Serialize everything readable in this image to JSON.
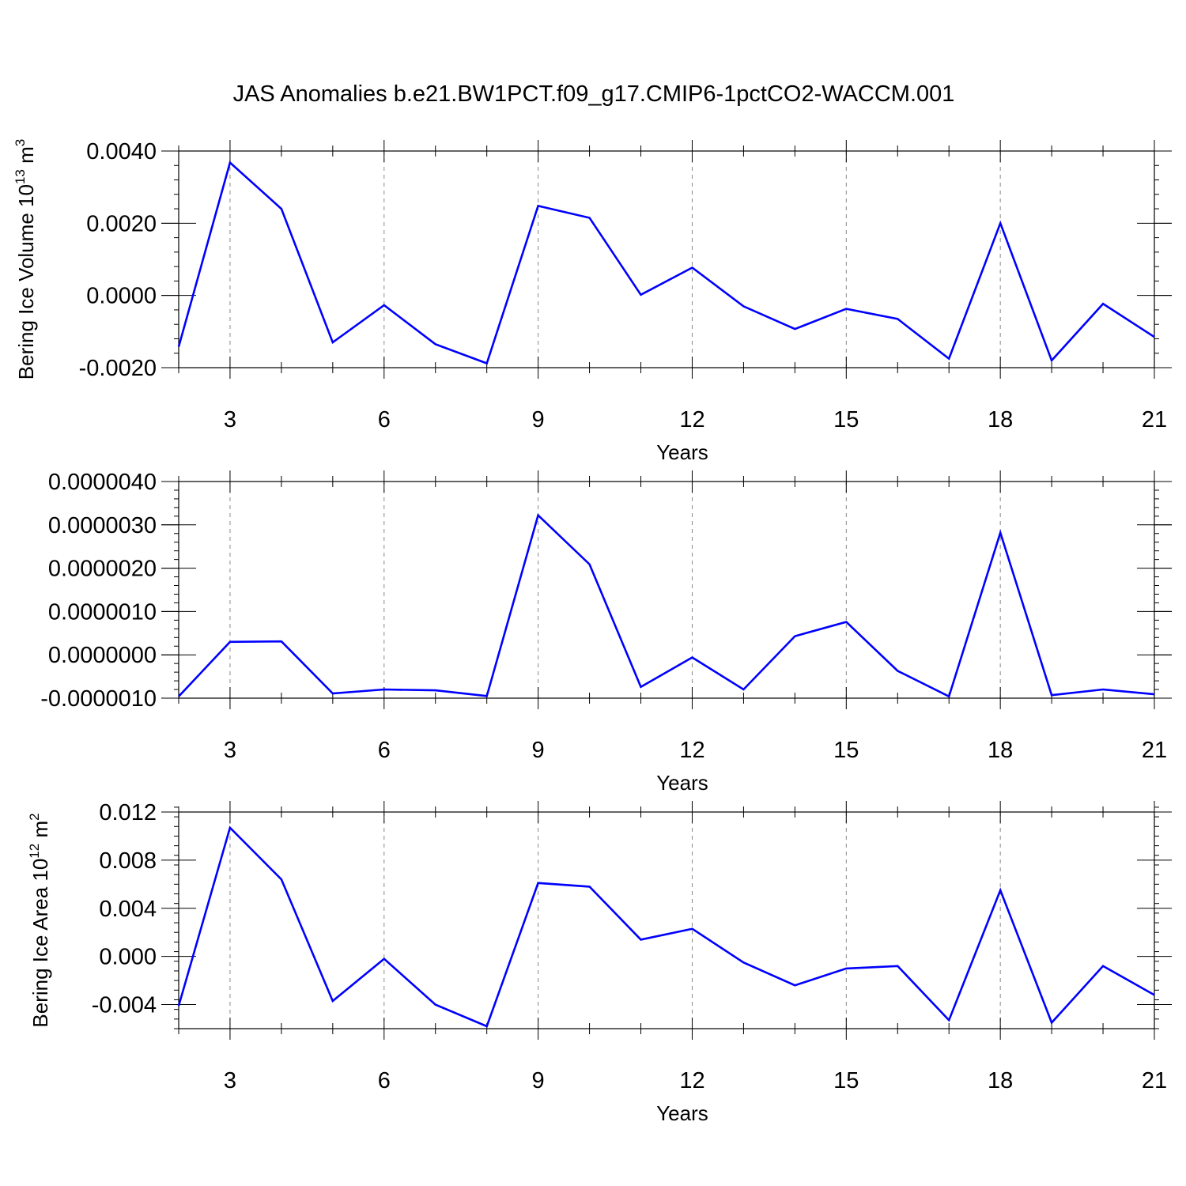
{
  "title": "JAS Anomalies b.e21.BW1PCT.f09_g17.CMIP6-1pctCO2-WACCM.001",
  "colors": {
    "line": "#0000ff",
    "axes": "#000000",
    "grid": "#888888"
  },
  "chart_data": [
    {
      "type": "line",
      "xlabel": "Years",
      "ylabel": {
        "text": "Bering Ice Volume 10",
        "sup1": "13",
        "mid": " m",
        "sup2": "3"
      },
      "xlim": [
        2,
        21
      ],
      "ylim": [
        -0.002,
        0.004
      ],
      "xticks": [
        3,
        6,
        9,
        12,
        15,
        18,
        21
      ],
      "yticks": [
        -0.002,
        0.0,
        0.002,
        0.004
      ],
      "ytick_labels": [
        "-0.0020",
        "0.0000",
        "0.0020",
        "0.0040"
      ],
      "grid": "vertical dashed at major x ticks",
      "x": [
        2,
        3,
        4,
        5,
        6,
        7,
        8,
        9,
        10,
        11,
        12,
        13,
        14,
        15,
        16,
        17,
        18,
        19,
        20,
        21
      ],
      "values": [
        -0.00142,
        0.00368,
        0.0024,
        -0.0013,
        -0.00027,
        -0.00135,
        -0.00188,
        0.00248,
        0.00215,
        2e-05,
        0.00077,
        -0.0003,
        -0.00093,
        -0.00037,
        -0.00065,
        -0.00175,
        0.002,
        -0.0018,
        -0.00023,
        -0.00115
      ]
    },
    {
      "type": "line",
      "xlabel": "Years",
      "ylabel": null,
      "xlim": [
        2,
        21
      ],
      "ylim": [
        -1e-06,
        4e-06
      ],
      "xticks": [
        3,
        6,
        9,
        12,
        15,
        18,
        21
      ],
      "yticks": [
        -1e-06,
        0.0,
        1e-06,
        2e-06,
        3e-06,
        4e-06
      ],
      "ytick_labels": [
        "-0.0000010",
        "0.0000000",
        "0.0000010",
        "0.0000020",
        "0.0000030",
        "0.0000040"
      ],
      "grid": "vertical dashed at major x ticks",
      "x": [
        2,
        3,
        4,
        5,
        6,
        7,
        8,
        9,
        10,
        11,
        12,
        13,
        14,
        15,
        16,
        17,
        18,
        19,
        20,
        21
      ],
      "values": [
        -9.6e-07,
        3e-07,
        3.1e-07,
        -8.9e-07,
        -8e-07,
        -8.2e-07,
        -9.5e-07,
        3.22e-06,
        2.09e-06,
        -7.4e-07,
        -6e-08,
        -8e-07,
        4.3e-07,
        7.6e-07,
        -3.7e-07,
        -9.6e-07,
        2.82e-06,
        -9.3e-07,
        -8e-07,
        -9.1e-07
      ]
    },
    {
      "type": "line",
      "xlabel": "Years",
      "ylabel": {
        "text": "Bering Ice Area 10",
        "sup1": "12",
        "mid": " m",
        "sup2": "2"
      },
      "xlim": [
        2,
        21
      ],
      "ylim": [
        -0.006,
        0.012
      ],
      "xticks": [
        3,
        6,
        9,
        12,
        15,
        18,
        21
      ],
      "yticks": [
        -0.004,
        0.0,
        0.004,
        0.008,
        0.012
      ],
      "ytick_labels": [
        "-0.004",
        "0.000",
        "0.004",
        "0.008",
        "0.012"
      ],
      "grid": "vertical dashed at major x ticks",
      "x": [
        2,
        3,
        4,
        5,
        6,
        7,
        8,
        9,
        10,
        11,
        12,
        13,
        14,
        15,
        16,
        17,
        18,
        19,
        20,
        21
      ],
      "values": [
        -0.0041,
        0.0107,
        0.0064,
        -0.0037,
        -0.0002,
        -0.004,
        -0.0058,
        0.0061,
        0.0058,
        0.0014,
        0.0023,
        -0.0005,
        -0.0024,
        -0.001,
        -0.0008,
        -0.0053,
        0.0055,
        -0.0055,
        -0.0008,
        -0.0032
      ]
    }
  ]
}
